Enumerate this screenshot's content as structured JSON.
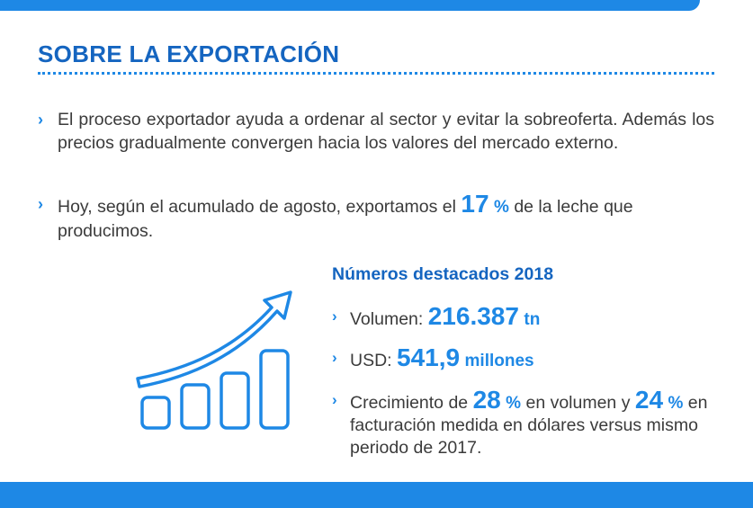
{
  "title": "SOBRE LA EXPORTACIÓN",
  "bullets": {
    "b1": "El proceso exportador ayuda a ordenar al sector y evitar la sobreoferta. Además los precios gradualmente convergen hacia los valores del mercado externo.",
    "b2_pre": "Hoy, según el acumulado de agosto, exportamos el",
    "b2_num": "17",
    "b2_pct": "%",
    "b2_post": "de la leche que producimos."
  },
  "stats": {
    "heading": "Números destacados 2018",
    "volume_label": "Volumen:",
    "volume_value": "216.387",
    "volume_unit": "tn",
    "usd_label": "USD:",
    "usd_value": "541,9",
    "usd_unit": "millones",
    "growth_pre": "Crecimiento de",
    "growth_num1": "28",
    "growth_pct1": "%",
    "growth_mid": "en volumen y",
    "growth_num2": "24",
    "growth_pct2": "%",
    "growth_post": "en facturación medida en dólares versus mismo periodo de 2017."
  },
  "icons": {
    "chevron": "›",
    "chart": "growth-chart-icon"
  },
  "colors": {
    "accent": "#1e88e5",
    "title": "#1565c0",
    "text": "#3b3b3b"
  }
}
